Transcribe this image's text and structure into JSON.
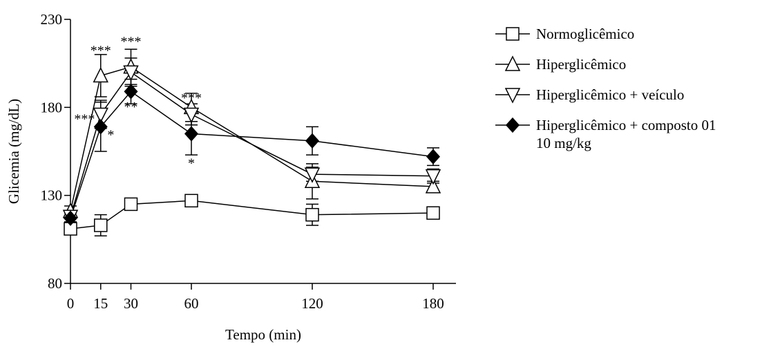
{
  "chart_data": {
    "type": "line",
    "title": "",
    "xlabel": "Tempo (min)",
    "ylabel": "Glicemia (mg/dL)",
    "xlim": [
      0,
      190
    ],
    "ylim": [
      80,
      230
    ],
    "xticks": [
      0,
      15,
      30,
      60,
      120,
      180
    ],
    "yticks": [
      80,
      130,
      180,
      230
    ],
    "legend_position": "top-right",
    "series": [
      {
        "name": "Normoglicêmico",
        "marker": "square",
        "filled": false,
        "x": [
          0,
          15,
          30,
          60,
          120,
          180
        ],
        "y": [
          111,
          113,
          125,
          127,
          119,
          120
        ],
        "err": [
          3,
          6,
          2,
          2,
          6,
          2
        ]
      },
      {
        "name": "Hiperglicêmico",
        "marker": "triangle-up",
        "filled": false,
        "x": [
          0,
          15,
          30,
          60,
          120,
          180
        ],
        "y": [
          121,
          198,
          203,
          180,
          138,
          135
        ],
        "err": [
          3,
          12,
          10,
          8,
          10,
          3
        ]
      },
      {
        "name": "Hiperglicêmico + veículo",
        "marker": "triangle-down",
        "filled": false,
        "x": [
          0,
          15,
          30,
          60,
          120,
          180
        ],
        "y": [
          118,
          176,
          200,
          176,
          142,
          141
        ],
        "err": [
          3,
          8,
          8,
          6,
          4,
          4
        ]
      },
      {
        "name": "Hiperglicêmico + composto 01\n10 mg/kg",
        "marker": "diamond",
        "filled": true,
        "x": [
          0,
          15,
          30,
          60,
          120,
          180
        ],
        "y": [
          117,
          169,
          189,
          165,
          161,
          152
        ],
        "err": [
          3,
          14,
          7,
          12,
          8,
          5
        ]
      }
    ],
    "annotations": [
      {
        "text": "***",
        "x": 15,
        "y": 213
      },
      {
        "text": "***",
        "x": 30,
        "y": 218
      },
      {
        "text": "***",
        "x": 7,
        "y": 174
      },
      {
        "text": "*",
        "x": 20,
        "y": 165
      },
      {
        "text": "**",
        "x": 30,
        "y": 181
      },
      {
        "text": "***",
        "x": 60,
        "y": 186
      },
      {
        "text": "*",
        "x": 60,
        "y": 149
      }
    ]
  }
}
